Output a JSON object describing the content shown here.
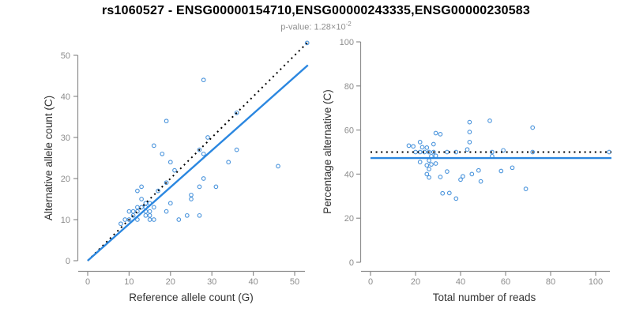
{
  "title": "rs1060527 - ENSG00000154710,ENSG00000243335,ENSG00000230583",
  "subtitle": {
    "label": "p-value: ",
    "value": "1.28",
    "times": "×",
    "base": "10",
    "exponent": "-2"
  },
  "colors": {
    "title": "#000000",
    "subtitle": "#8f8f8f",
    "axis": "#8e8e8e",
    "tick_label": "#8c8c8c",
    "axis_title": "#333333",
    "point": "#4a94dc",
    "fit_line": "#2b87e0",
    "dotted_line": "#000000",
    "background": "#ffffff"
  },
  "chart_data": [
    {
      "type": "scatter",
      "name": "allele-counts-panel",
      "xlabel": "Reference allele count (G)",
      "ylabel": "Alternative allele count (C)",
      "xlim": [
        0,
        53
      ],
      "ylim": [
        0,
        53
      ],
      "xticks": [
        0,
        10,
        20,
        30,
        40,
        50
      ],
      "yticks": [
        0,
        10,
        20,
        30,
        40,
        50
      ],
      "grid": false,
      "legend": "none",
      "points": [
        [
          53,
          53
        ],
        [
          28,
          44
        ],
        [
          19,
          34
        ],
        [
          36,
          36
        ],
        [
          29,
          30
        ],
        [
          16,
          28
        ],
        [
          18,
          26
        ],
        [
          27,
          27
        ],
        [
          28,
          26
        ],
        [
          20,
          24
        ],
        [
          21,
          22
        ],
        [
          34,
          24
        ],
        [
          36,
          27
        ],
        [
          46,
          23
        ],
        [
          28,
          20
        ],
        [
          27,
          18
        ],
        [
          31,
          18
        ],
        [
          13,
          18
        ],
        [
          12,
          17
        ],
        [
          13,
          15
        ],
        [
          25,
          16
        ],
        [
          25,
          15
        ],
        [
          19,
          12
        ],
        [
          22,
          10
        ],
        [
          24,
          11
        ],
        [
          27,
          11
        ],
        [
          17,
          17
        ],
        [
          19,
          19
        ],
        [
          20,
          14
        ],
        [
          8,
          9
        ],
        [
          9,
          10
        ],
        [
          10,
          10
        ],
        [
          11,
          11
        ],
        [
          10,
          12
        ],
        [
          11,
          12
        ],
        [
          12,
          12
        ],
        [
          12,
          13
        ],
        [
          13,
          13
        ],
        [
          14,
          13
        ],
        [
          14,
          14
        ],
        [
          15,
          14
        ],
        [
          14,
          12
        ],
        [
          15,
          12
        ],
        [
          16,
          13
        ],
        [
          14,
          11
        ],
        [
          15,
          11
        ],
        [
          15,
          10
        ],
        [
          16,
          10
        ],
        [
          12,
          10
        ]
      ],
      "lines": [
        {
          "name": "identity-line",
          "style": "dotted",
          "x1": 0,
          "y1": 0,
          "x2": 53.2,
          "y2": 53.2
        },
        {
          "name": "fit-line",
          "style": "solid",
          "x1": 0,
          "y1": 0,
          "x2": 53.2,
          "y2": 47.6
        }
      ]
    },
    {
      "type": "scatter",
      "name": "percentage-panel",
      "xlabel": "Total number of reads",
      "ylabel": "Percentage alternative (C)",
      "xlim": [
        0,
        107
      ],
      "ylim": [
        0,
        100
      ],
      "xticks": [
        0,
        20,
        40,
        60,
        80,
        100
      ],
      "yticks": [
        0,
        20,
        40,
        60,
        80,
        100
      ],
      "grid": false,
      "legend": "none",
      "points": [
        [
          106,
          50
        ],
        [
          72,
          61.1
        ],
        [
          53,
          64.2
        ],
        [
          72,
          50
        ],
        [
          59,
          50.8
        ],
        [
          44,
          63.6
        ],
        [
          44,
          59.1
        ],
        [
          54,
          50
        ],
        [
          54,
          48.1
        ],
        [
          44,
          54.5
        ],
        [
          43,
          51.2
        ],
        [
          58,
          41.4
        ],
        [
          63,
          42.9
        ],
        [
          69,
          33.3
        ],
        [
          48,
          41.7
        ],
        [
          45,
          40
        ],
        [
          49,
          36.7
        ],
        [
          31,
          58.1
        ],
        [
          29,
          58.6
        ],
        [
          28,
          53.6
        ],
        [
          41,
          39
        ],
        [
          40,
          37.5
        ],
        [
          31,
          38.7
        ],
        [
          32,
          31.3
        ],
        [
          35,
          31.4
        ],
        [
          38,
          28.9
        ],
        [
          34,
          50
        ],
        [
          38,
          50
        ],
        [
          34,
          41.2
        ],
        [
          17,
          52.9
        ],
        [
          19,
          52.6
        ],
        [
          20,
          50
        ],
        [
          22,
          50
        ],
        [
          22,
          54.5
        ],
        [
          23,
          52.2
        ],
        [
          24,
          50
        ],
        [
          25,
          52
        ],
        [
          26,
          50
        ],
        [
          27,
          48.1
        ],
        [
          28,
          50
        ],
        [
          29,
          48.3
        ],
        [
          26,
          46.2
        ],
        [
          27,
          44.4
        ],
        [
          29,
          44.8
        ],
        [
          25,
          44
        ],
        [
          26,
          42.3
        ],
        [
          25,
          40
        ],
        [
          26,
          38.5
        ],
        [
          22,
          45.5
        ]
      ],
      "lines": [
        {
          "name": "null-line",
          "style": "dotted",
          "x1": 0,
          "y1": 50,
          "x2": 107,
          "y2": 50
        },
        {
          "name": "fit-line",
          "style": "solid",
          "x1": 0,
          "y1": 47.3,
          "x2": 107,
          "y2": 47.3
        }
      ]
    }
  ]
}
